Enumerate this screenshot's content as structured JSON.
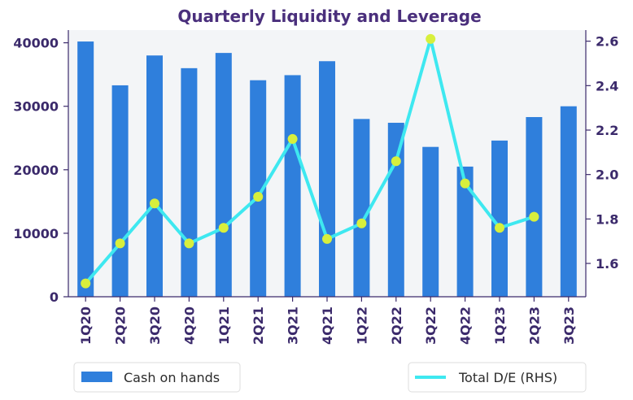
{
  "chart_data": {
    "type": "bar",
    "title": "Quarterly Liquidity and Leverage",
    "categories": [
      "1Q20",
      "2Q20",
      "3Q20",
      "4Q20",
      "1Q21",
      "2Q21",
      "3Q21",
      "4Q21",
      "1Q22",
      "2Q22",
      "3Q22",
      "4Q22",
      "1Q23",
      "2Q23",
      "3Q23"
    ],
    "series": [
      {
        "name": "Cash on hands",
        "type": "bar",
        "axis": "left",
        "color": "#2f7fdc",
        "values": [
          40200,
          33300,
          38000,
          36000,
          38400,
          34100,
          34900,
          37100,
          28000,
          27400,
          23600,
          20500,
          24600,
          28300,
          30000
        ]
      },
      {
        "name": "Total D/E (RHS)",
        "type": "line",
        "axis": "right",
        "color": "#3ee8f0",
        "marker_color": "#d8ef3c",
        "values": [
          1.51,
          1.69,
          1.87,
          1.69,
          1.76,
          1.9,
          2.16,
          1.71,
          1.78,
          2.06,
          2.61,
          1.96,
          1.76,
          1.81,
          null
        ]
      }
    ],
    "yleft": {
      "lim": [
        0,
        42000
      ],
      "ticks": [
        0,
        10000,
        20000,
        30000,
        40000
      ]
    },
    "yright": {
      "lim": [
        1.45,
        2.65
      ],
      "ticks": [
        1.6,
        1.8,
        2.0,
        2.2,
        2.4,
        2.6
      ]
    },
    "legend": [
      "Cash on hands",
      "Total D/E (RHS)"
    ],
    "legend_placement": "bottom",
    "plot_background": "#f3f5f7",
    "grid": false
  }
}
